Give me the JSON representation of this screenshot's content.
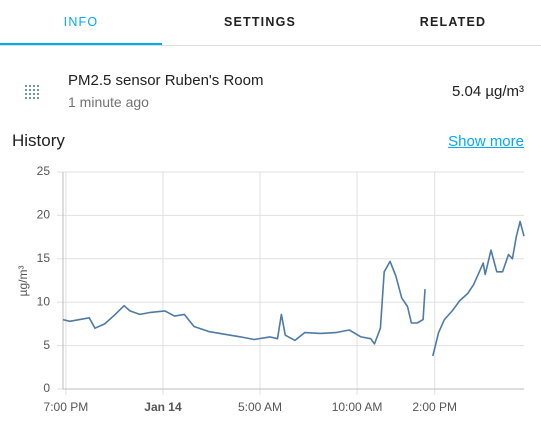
{
  "tabs": [
    "INFO",
    "SETTINGS",
    "RELATED"
  ],
  "entity": {
    "name": "PM2.5 sensor Ruben's Room",
    "last_changed": "1 minute ago",
    "state": "5.04 µg/m³"
  },
  "history": {
    "title": "History",
    "link": "Show more"
  },
  "chart_data": {
    "type": "line",
    "ylabel": "µg/m³",
    "x": [
      -0.15,
      0.2,
      0.7,
      1.2,
      1.5,
      2.0,
      2.5,
      3.0,
      3.3,
      3.8,
      4.3,
      5.1,
      5.6,
      6.1,
      6.6,
      7.4,
      8.2,
      9.0,
      9.7,
      10.5,
      10.9,
      11.1,
      11.3,
      11.8,
      12.3,
      13.1,
      13.9,
      14.6,
      15.2,
      15.7,
      15.9,
      16.2,
      16.4,
      16.7,
      17.0,
      17.3,
      17.6,
      17.8,
      18.1,
      18.4,
      18.5,
      18.8,
      18.9,
      19.2,
      19.5,
      19.9,
      20.3,
      20.7,
      21.0,
      21.2,
      21.5,
      21.6,
      21.9,
      22.2,
      22.5,
      22.8,
      23.0,
      23.2,
      23.4,
      23.6
    ],
    "series": [
      {
        "name": "PM2.5 sensor Ruben's Room",
        "color": "#4e7ba5",
        "values": [
          8.0,
          7.8,
          8.0,
          8.2,
          7.0,
          7.5,
          8.5,
          9.6,
          9.0,
          8.6,
          8.8,
          9.0,
          8.4,
          8.6,
          7.2,
          6.6,
          6.3,
          6.0,
          5.7,
          6.0,
          5.8,
          8.6,
          6.2,
          5.6,
          6.5,
          6.4,
          6.5,
          6.8,
          6.0,
          5.8,
          5.2,
          7.0,
          13.5,
          14.7,
          13.0,
          10.5,
          9.5,
          7.6,
          7.6,
          8.0,
          11.5,
          null,
          3.8,
          6.5,
          8.0,
          9.0,
          10.2,
          11.0,
          12.0,
          13.0,
          14.5,
          13.2,
          16.0,
          13.5,
          13.5,
          15.5,
          15.0,
          17.5,
          19.3,
          17.6
        ]
      }
    ],
    "xlim": [
      -0.15,
      23.6
    ],
    "xticks": [
      {
        "value": 0,
        "label": "7:00 PM"
      },
      {
        "value": 5,
        "label": "Jan 14"
      },
      {
        "value": 10,
        "label": "5:00 AM"
      },
      {
        "value": 15,
        "label": "10:00 AM"
      },
      {
        "value": 19,
        "label": "2:00 PM"
      }
    ],
    "ylim": [
      0,
      25
    ],
    "yticks": [
      0,
      5,
      10,
      15,
      20,
      25
    ],
    "grid": true
  }
}
